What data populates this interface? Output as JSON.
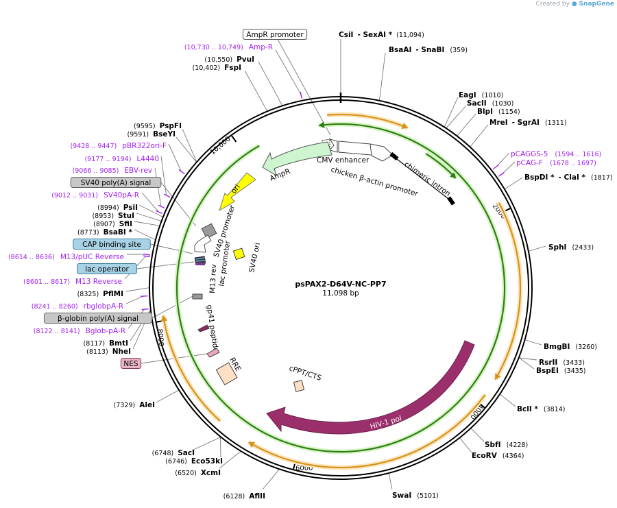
{
  "credit": {
    "prefix": "Created by",
    "brand": "SnapGene"
  },
  "plasmid": {
    "name": "psPAX2-D64V-NC-PP7",
    "length": "11,098 bp",
    "total_bp": 11098
  },
  "ticks": [
    {
      "pos": 2000,
      "label": "2000"
    },
    {
      "pos": 4000,
      "label": "4000"
    },
    {
      "pos": 6000,
      "label": "6000"
    },
    {
      "pos": 8000,
      "label": "8000"
    },
    {
      "pos": 10000,
      "label": "10,000"
    }
  ],
  "sites": [
    {
      "name": "CsiI",
      "num": "(11,094)",
      "pos": 11094,
      "suffix": "- SexAI *"
    },
    {
      "name": "BsaAI",
      "num": "(359)",
      "pos": 359,
      "suffix": "- SnaBI"
    },
    {
      "name": "EagI",
      "num": "(1010)",
      "pos": 1010
    },
    {
      "name": "SacII",
      "num": "(1030)",
      "pos": 1030
    },
    {
      "name": "BlpI",
      "num": "(1154)",
      "pos": 1154
    },
    {
      "name": "MreI",
      "num": "(1311)",
      "pos": 1311,
      "suffix": "- SgrAI"
    },
    {
      "name": "BspDI *",
      "num": "(1817)",
      "pos": 1817,
      "suffix": "- ClaI *"
    },
    {
      "name": "SphI",
      "num": "(2433)",
      "pos": 2433
    },
    {
      "name": "BmgBI",
      "num": "(3260)",
      "pos": 3260
    },
    {
      "name": "RsrII",
      "num": "(3433)",
      "pos": 3433
    },
    {
      "name": "BspEI",
      "num": "(3435)",
      "pos": 3435
    },
    {
      "name": "BclI *",
      "num": "(3814)",
      "pos": 3814
    },
    {
      "name": "SbfI",
      "num": "(4228)",
      "pos": 4228
    },
    {
      "name": "EcoRV",
      "num": "(4364)",
      "pos": 4364
    },
    {
      "name": "SwaI",
      "num": "(5101)",
      "pos": 5101
    },
    {
      "name": "AflII",
      "num": "(6128)",
      "pos": 6128
    },
    {
      "name": "XcmI",
      "num": "(6520)",
      "pos": 6520
    },
    {
      "name": "Eco53kI",
      "num": "(6746)",
      "pos": 6746
    },
    {
      "name": "SacI",
      "num": "(6748)",
      "pos": 6748
    },
    {
      "name": "AleI",
      "num": "(7329)",
      "pos": 7329
    },
    {
      "name": "NheI",
      "num": "(8113)",
      "pos": 8113
    },
    {
      "name": "BmtI",
      "num": "(8117)",
      "pos": 8117
    },
    {
      "name": "PflMI",
      "num": "(8325)",
      "pos": 8325
    },
    {
      "name": "BsaBI *",
      "num": "(8773)",
      "pos": 8773
    },
    {
      "name": "SfiI",
      "num": "(8907)",
      "pos": 8907
    },
    {
      "name": "StuI",
      "num": "(8953)",
      "pos": 8953
    },
    {
      "name": "PsiI",
      "num": "(8994)",
      "pos": 8994
    },
    {
      "name": "BseYI",
      "num": "(9591)",
      "pos": 9591
    },
    {
      "name": "PspFI",
      "num": "(9595)",
      "pos": 9595
    },
    {
      "name": "FspI",
      "num": "(10,402)",
      "pos": 10402
    },
    {
      "name": "PvuI",
      "num": "(10,550)",
      "pos": 10550
    }
  ],
  "primers": [
    {
      "name": "Amp-R",
      "range": "(10,730 .. 10,749)",
      "pos": 10740
    },
    {
      "name": "pCAGGS-5",
      "range": "(1594 .. 1616)",
      "pos": 1605
    },
    {
      "name": "pCAG-F",
      "range": "(1678 .. 1697)",
      "pos": 1688
    },
    {
      "name": "pBR322ori-F",
      "range": "(9428 .. 9447)",
      "pos": 9438
    },
    {
      "name": "L4440",
      "range": "(9177 .. 9194)",
      "pos": 9186
    },
    {
      "name": "EBV-rev",
      "range": "(9066 .. 9085)",
      "pos": 9076
    },
    {
      "name": "SV40pA-R",
      "range": "(9012 .. 9031)",
      "pos": 9022
    },
    {
      "name": "M13/pUC Reverse",
      "range": "(8614 .. 8636)",
      "pos": 8625
    },
    {
      "name": "M13 Reverse",
      "range": "(8601 .. 8617)",
      "pos": 8609
    },
    {
      "name": "rbglobpA-R",
      "range": "(8241 .. 8260)",
      "pos": 8250
    },
    {
      "name": "Bglob-pA-R",
      "range": "(8122 .. 8141)",
      "pos": 8132
    }
  ],
  "boxed_features": [
    {
      "name": "AmpR promoter",
      "style": "white",
      "pos": 10850
    },
    {
      "name": "SV40 poly(A) signal",
      "style": "gray",
      "pos": 9000
    },
    {
      "name": "CAP binding site",
      "style": "blue",
      "pos": 8660
    },
    {
      "name": "lac operator",
      "style": "blue",
      "pos": 8585
    },
    {
      "name": "β-globin poly(A) signal",
      "style": "gray",
      "pos": 8300
    },
    {
      "name": "NES",
      "style": "pink",
      "pos": 8050
    }
  ],
  "features": [
    {
      "name": "CMV enhancer",
      "type": "arrow"
    },
    {
      "name": "chicken β-actin promoter",
      "type": "arrow"
    },
    {
      "name": "chimeric intron",
      "type": "intron"
    },
    {
      "name": "AmpR",
      "type": "arrow"
    },
    {
      "name": "ori",
      "type": "arrow"
    },
    {
      "name": "SV40 promoter",
      "type": "box"
    },
    {
      "name": "SV40 ori",
      "type": "box"
    },
    {
      "name": "lac promoter",
      "type": "arrow"
    },
    {
      "name": "M13 rev",
      "type": "box"
    },
    {
      "name": "gp41 peptide",
      "type": "box"
    },
    {
      "name": "RRE",
      "type": "box"
    },
    {
      "name": "cPPT/CTS",
      "type": "box"
    },
    {
      "name": "HIV-1 pol",
      "type": "arrow"
    }
  ],
  "colors": {
    "backbone": "#000000",
    "orf_fill": "#fde5bf",
    "orf_line": "#d4941a",
    "green_fill": "#d7f5c3",
    "green_line": "#2e7d16",
    "ampr_fill": "#ccf5d0",
    "ori_fill": "#ffff00",
    "pol_fill": "#9b2f6b",
    "rre_fill": "#ffe0c4",
    "gray_fill": "#999999",
    "primer": "#a020f0",
    "box_blue": "#a8d2e6",
    "box_gray": "#c7c7c7",
    "box_pink": "#e8b4c6"
  }
}
